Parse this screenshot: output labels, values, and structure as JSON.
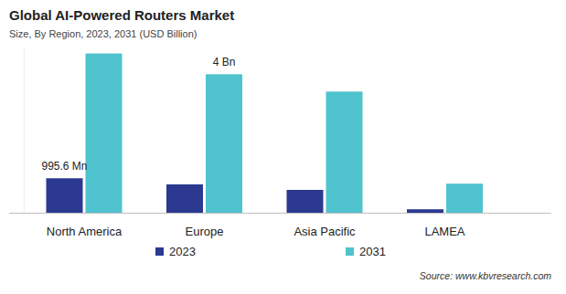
{
  "chart_data": {
    "type": "bar",
    "title": "Global AI-Powered Routers Market",
    "subtitle": "Size, By Region, 2023, 2031 (USD Billion)",
    "source": "Source: www.kbvresearch.com",
    "categories": [
      "North America",
      "Europe",
      "Asia Pacific",
      "LAMEA"
    ],
    "series": [
      {
        "name": "2023",
        "color": "#2b3990",
        "values": [
          0.9956,
          0.82,
          0.66,
          0.1
        ],
        "value_labels": [
          "995.6 Mn",
          null,
          null,
          null
        ]
      },
      {
        "name": "2031",
        "color": "#4fc3ce",
        "values": [
          4.6,
          4,
          3.5,
          0.84
        ],
        "value_labels": [
          null,
          "4 Bn",
          null,
          null
        ]
      }
    ],
    "ylim": [
      0,
      4.8
    ],
    "data_labels": true,
    "tick_labels": "x",
    "grid": false,
    "legend": "bottom"
  }
}
